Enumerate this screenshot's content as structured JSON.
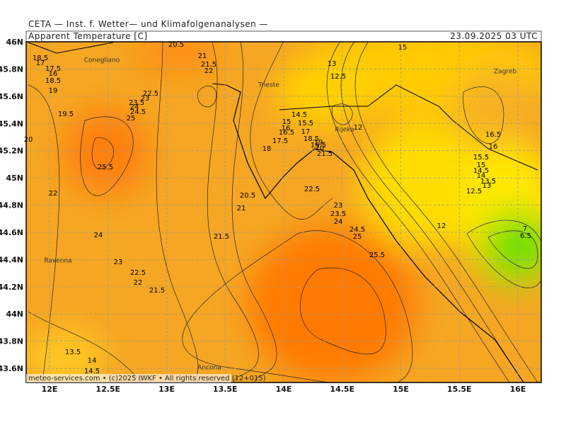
{
  "header": "CETA — Inst. f. Wetter— und Klimafolgenanalysen —",
  "map": {
    "title": "Apparent Temperature [C]",
    "valid_time": "23.09.2025 03 UTC",
    "footer": "meteo-services.com • (c)2025 IWKF • All rights reserved (12+015)",
    "lat_labels": [
      "46N",
      "45.8N",
      "45.6N",
      "45.4N",
      "45.2N",
      "45N",
      "44.8N",
      "44.6N",
      "44.4N",
      "44.2N",
      "44N",
      "43.8N",
      "43.6N"
    ],
    "lon_labels": [
      "12E",
      "12.5E",
      "13E",
      "13.5E",
      "14E",
      "14.5E",
      "15E",
      "15.5E",
      "16E"
    ],
    "places": [
      "Conegliano",
      "Trieste",
      "Rijeka",
      "Zagreb",
      "Ravenna",
      "Ancona"
    ],
    "contour_labels": [
      18.5,
      17,
      17.5,
      16,
      18.5,
      19,
      19.5,
      20,
      22,
      24,
      23,
      22.5,
      22,
      21.5,
      25.5,
      25,
      24.5,
      24,
      23.5,
      23,
      22.5,
      20.5,
      21,
      21.5,
      22,
      21,
      20.5,
      21.5,
      18,
      17.5,
      16.5,
      16,
      15,
      14.5,
      15.5,
      17,
      18.5,
      19,
      19.5,
      20,
      21.5,
      22.5,
      23,
      23.5,
      24,
      24.5,
      25,
      25.5,
      12,
      13,
      12.5,
      15,
      16.5,
      16,
      15.5,
      15,
      14.5,
      14,
      13.5,
      13,
      12.5,
      12,
      7,
      6.5,
      13.5,
      14,
      14.5
    ]
  }
}
